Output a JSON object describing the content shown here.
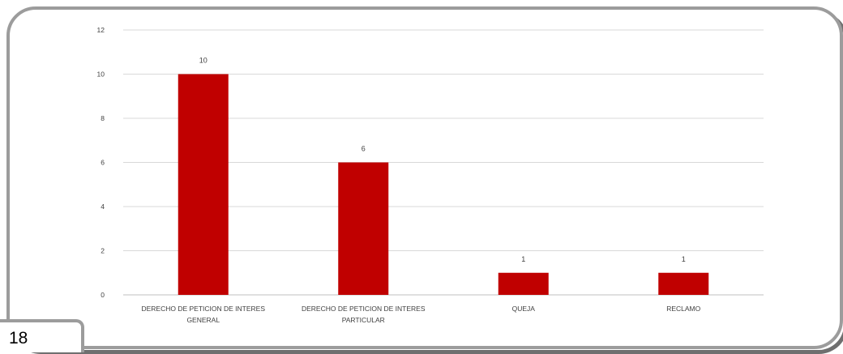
{
  "page_number": "18",
  "chart_data": {
    "type": "bar",
    "categories": [
      [
        "DERECHO DE PETICION DE INTERES",
        "GENERAL"
      ],
      [
        "DERECHO DE PETICION DE INTERES",
        "PARTICULAR"
      ],
      [
        "QUEJA"
      ],
      [
        "RECLAMO"
      ]
    ],
    "values": [
      10,
      6,
      1,
      1
    ],
    "data_labels": [
      "10",
      "6",
      "1",
      "1"
    ],
    "y_ticks": [
      "0",
      "2",
      "4",
      "6",
      "8",
      "10",
      "12"
    ],
    "ylim": [
      0,
      12
    ],
    "grid": true,
    "bar_color": "#c00000",
    "grid_color": "#d9d9d9",
    "axis_color": "#bfbfbf",
    "title": "",
    "xlabel": "",
    "ylabel": ""
  }
}
